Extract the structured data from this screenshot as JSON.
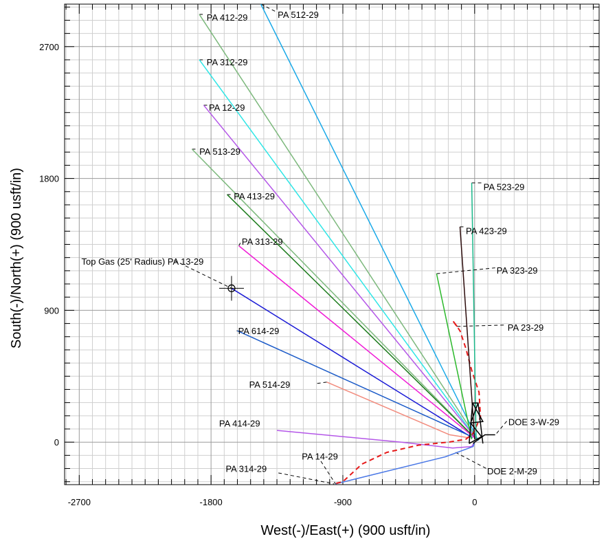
{
  "chart_data": {
    "type": "line",
    "title": "",
    "xlabel": "West(-)/East(+) (900 usft/in)",
    "ylabel": "South(-)/North(+) (900 usft/in)",
    "xlim": [
      -2800,
      850
    ],
    "ylim": [
      -290,
      2990
    ],
    "x_ticks": [
      -2700,
      -1800,
      -900,
      0
    ],
    "y_ticks": [
      0,
      900,
      1800,
      2700
    ],
    "grid": true,
    "minor_grid_step": 90,
    "legend": "none",
    "series": [
      {
        "name": "PA 512-29",
        "color": "#19a9e8",
        "width": 1.5,
        "points": [
          [
            25,
            10
          ],
          [
            -1460,
            2990
          ]
        ]
      },
      {
        "name": "PA 412-29",
        "color": "#7cb87c",
        "width": 1.5,
        "points": [
          [
            22,
            15
          ],
          [
            -1880,
            2920
          ]
        ]
      },
      {
        "name": "PA 312-29",
        "color": "#2ee6e6",
        "width": 1.5,
        "points": [
          [
            18,
            15
          ],
          [
            -1880,
            2610
          ]
        ]
      },
      {
        "name": "PA 12-29",
        "color": "#b456e8",
        "width": 1.5,
        "points": [
          [
            15,
            20
          ],
          [
            -1850,
            2300
          ]
        ]
      },
      {
        "name": "PA 513-29",
        "color": "#7cb87c",
        "width": 1.5,
        "points": [
          [
            10,
            20
          ],
          [
            -1930,
            2000
          ]
        ]
      },
      {
        "name": "PA 413-29",
        "color": "#1a7a1a",
        "width": 1.5,
        "points": [
          [
            5,
            25
          ],
          [
            -1690,
            1690
          ]
        ]
      },
      {
        "name": "PA 313-29",
        "color": "#f01ad6",
        "width": 1.5,
        "points": [
          [
            0,
            30
          ],
          [
            -1610,
            1340
          ]
        ]
      },
      {
        "name": "PA 13-29",
        "color": "#1a1ad6",
        "width": 1.5,
        "points": [
          [
            -15,
            30
          ],
          [
            -1660,
            1050
          ]
        ]
      },
      {
        "name": "PA 614-29",
        "color": "#1a5ac8",
        "width": 1.5,
        "points": [
          [
            -25,
            40
          ],
          [
            -1620,
            760
          ]
        ]
      },
      {
        "name": "PA 514-29",
        "color": "#f28a7c",
        "width": 1.5,
        "points": [
          [
            -40,
            30
          ],
          [
            -170,
            50
          ],
          [
            -1010,
            410
          ]
        ]
      },
      {
        "name": "PA 414-29",
        "color": "#b456e8",
        "width": 1.5,
        "points": [
          [
            0,
            0
          ],
          [
            -20,
            -30
          ],
          [
            -150,
            -40
          ],
          [
            -500,
            0
          ],
          [
            -1350,
            80
          ]
        ]
      },
      {
        "name": "PA 14-29",
        "color": "#4a78e6",
        "width": 1.5,
        "points": [
          [
            0,
            0
          ],
          [
            -10,
            -30
          ],
          [
            -200,
            -100
          ],
          [
            -950,
            -285
          ]
        ]
      },
      {
        "name": "PA 23-29",
        "color": "#e61a1a",
        "width": 2,
        "dash": "7,5",
        "points": [
          [
            -120,
            790
          ],
          [
            -150,
            830
          ],
          [
            -100,
            760
          ],
          [
            -60,
            640
          ],
          [
            -20,
            490
          ],
          [
            30,
            340
          ],
          [
            40,
            170
          ],
          [
            -10,
            60
          ],
          [
            -60,
            20
          ],
          [
            -180,
            0
          ],
          [
            -380,
            -20
          ],
          [
            -600,
            -70
          ],
          [
            -770,
            -150
          ],
          [
            -900,
            -270
          ],
          [
            -960,
            -285
          ]
        ]
      },
      {
        "name": "PA 323-29",
        "color": "#2ab82a",
        "width": 1.5,
        "points": [
          [
            -20,
            20
          ],
          [
            -260,
            1150
          ]
        ]
      },
      {
        "name": "PA 423-29",
        "color": "#2a0a0a",
        "width": 1.5,
        "points": [
          [
            0,
            20
          ],
          [
            -100,
            1470
          ]
        ]
      },
      {
        "name": "PA 523-29",
        "color": "#1ab88a",
        "width": 1.5,
        "points": [
          [
            10,
            20
          ],
          [
            -20,
            1770
          ]
        ]
      },
      {
        "name": "DOE 3-W-29",
        "color": "#000000",
        "width": 1.5,
        "points": [
          [
            0,
            0
          ],
          [
            70,
            50
          ],
          [
            140,
            50
          ]
        ]
      },
      {
        "name": "DOE 2-M-29",
        "color": "#000000",
        "width": 1.5,
        "points": [
          [
            0,
            0
          ],
          [
            -10,
            -10
          ]
        ]
      }
    ],
    "annotations": [
      {
        "text": "PA 512-29",
        "x": -1345,
        "y": 2920,
        "leader": [
          [
            -1460,
            2990
          ],
          [
            -1360,
            2940
          ]
        ]
      },
      {
        "text": "PA 412-29",
        "x": -1830,
        "y": 2900,
        "leader": [
          [
            -1880,
            2920
          ],
          [
            -1840,
            2920
          ]
        ]
      },
      {
        "text": "PA 312-29",
        "x": -1830,
        "y": 2595,
        "leader": [
          [
            -1880,
            2610
          ],
          [
            -1840,
            2610
          ]
        ]
      },
      {
        "text": "PA 12-29",
        "x": -1815,
        "y": 2285,
        "leader": [
          [
            -1850,
            2300
          ],
          [
            -1820,
            2300
          ]
        ]
      },
      {
        "text": "PA 513-29",
        "x": -1880,
        "y": 1985,
        "leader": [
          [
            -1930,
            2000
          ],
          [
            -1890,
            2000
          ]
        ]
      },
      {
        "text": "PA 413-29",
        "x": -1645,
        "y": 1680,
        "leader": [
          [
            -1690,
            1690
          ],
          [
            -1655,
            1690
          ]
        ]
      },
      {
        "text": "PA 313-29",
        "x": -1590,
        "y": 1370,
        "leader": [
          [
            -1610,
            1340
          ],
          [
            -1600,
            1360
          ]
        ]
      },
      {
        "text": "Top Gas (25' Radius) PA 13-29",
        "x": -2685,
        "y": 1235,
        "leader": [
          [
            -2050,
            1240
          ],
          [
            -1660,
            1050
          ]
        ]
      },
      {
        "text": "PA 614-29",
        "x": -1615,
        "y": 760,
        "leader": [
          [
            -1620,
            760
          ],
          [
            -1625,
            760
          ]
        ]
      },
      {
        "text": "PA 514-29",
        "x": -1540,
        "y": 395,
        "leader": [
          [
            -1010,
            410
          ],
          [
            -1080,
            400
          ]
        ]
      },
      {
        "text": "PA 414-29",
        "x": -1745,
        "y": 130,
        "leader": []
      },
      {
        "text": "PA 14-29",
        "x": -1180,
        "y": -95,
        "leader": [
          [
            -1050,
            -130
          ],
          [
            -950,
            -285
          ]
        ]
      },
      {
        "text": "PA 314-29",
        "x": -1700,
        "y": -180,
        "leader": [
          [
            -1340,
            -210
          ],
          [
            -960,
            -285
          ]
        ]
      },
      {
        "text": "PA 523-29",
        "x": 60,
        "y": 1745,
        "leader": [
          [
            -20,
            1770
          ],
          [
            50,
            1770
          ]
        ]
      },
      {
        "text": "PA 423-29",
        "x": -60,
        "y": 1445,
        "leader": [
          [
            -100,
            1470
          ],
          [
            -70,
            1470
          ]
        ]
      },
      {
        "text": "PA 323-29",
        "x": 150,
        "y": 1175,
        "leader": [
          [
            -260,
            1150
          ],
          [
            140,
            1190
          ]
        ]
      },
      {
        "text": "PA 23-29",
        "x": 225,
        "y": 785,
        "leader": [
          [
            -120,
            790
          ],
          [
            215,
            800
          ]
        ]
      },
      {
        "text": "DOE 3-W-29",
        "x": 230,
        "y": 140,
        "leader": [
          [
            150,
            60
          ],
          [
            225,
            150
          ]
        ]
      },
      {
        "text": "DOE 2-M-29",
        "x": 85,
        "y": -195,
        "leader": [
          [
            -130,
            -70
          ],
          [
            80,
            -180
          ]
        ]
      }
    ],
    "target_marker": {
      "x": -1660,
      "y": 1050
    }
  }
}
